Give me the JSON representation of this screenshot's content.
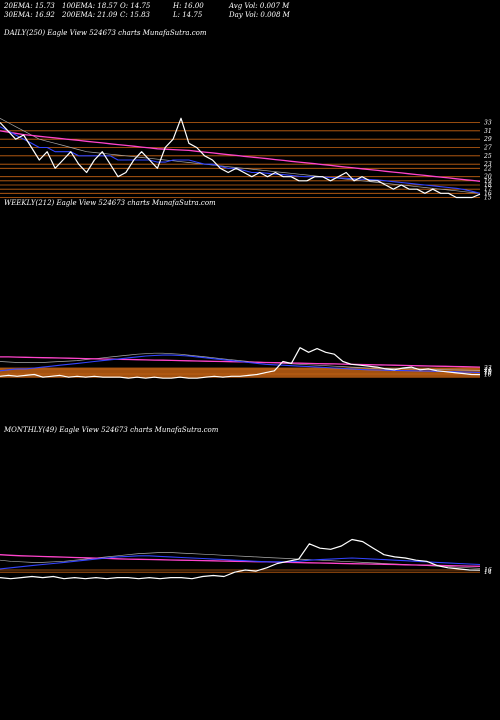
{
  "header": {
    "row1": {
      "ema20": "20EMA: 15.73",
      "ema100": "100EMA: 18.57",
      "open": "O: 14.75",
      "high": "H: 16.00",
      "avgvol": "Avg Vol: 0.007 M"
    },
    "row2": {
      "ema30": "30EMA: 16.92",
      "ema200": "200EMA: 21.09",
      "close": "C: 15.83",
      "low": "L: 14.75",
      "dayvol": "Day Vol: 0.008 M"
    }
  },
  "colors": {
    "price": "#ffffff",
    "ema_fast": "#3344ff",
    "ema_slow": "#ff44cc",
    "ma_gray": "#aaaaaa",
    "level": "#c86414",
    "background": "#000000"
  },
  "chart_data": [
    {
      "type": "line",
      "label": "DAILY(250) Eagle  View  524673 charts MunafaSutra.com",
      "ylim": [
        12,
        36
      ],
      "yticks": [
        "33",
        "31",
        "29",
        "27",
        "25",
        "23",
        "22",
        "20",
        "19",
        "18",
        "17",
        "16",
        "15"
      ],
      "levels": [
        33,
        31,
        29,
        27,
        25,
        23,
        22,
        20,
        19,
        18,
        17,
        16,
        15
      ],
      "series": [
        {
          "role": "price",
          "values": [
            33,
            31,
            29,
            30,
            27,
            24,
            26,
            22,
            24,
            26,
            23,
            21,
            24,
            26,
            23,
            20,
            21,
            24,
            26,
            24,
            22,
            27,
            29,
            34,
            28,
            27,
            25,
            24,
            22,
            21,
            22,
            21,
            20,
            21,
            20,
            21,
            20,
            20,
            19,
            19,
            20,
            20,
            19,
            20,
            21,
            19,
            20,
            19,
            19,
            18,
            17,
            18,
            17,
            17,
            16,
            17,
            16,
            16,
            15,
            15,
            15,
            15.8
          ]
        },
        {
          "role": "ema_fast",
          "values": [
            32,
            31,
            30,
            29,
            28,
            27,
            27,
            26,
            26,
            26,
            25,
            25,
            25,
            25,
            25,
            24,
            24,
            24,
            24,
            24,
            23.5,
            23.5,
            24,
            24,
            24,
            23.5,
            23,
            23,
            22.5,
            22,
            22,
            21.5,
            21,
            21,
            20.8,
            20.6,
            20.5,
            20.3,
            20.1,
            20,
            20,
            19.9,
            19.8,
            19.7,
            19.6,
            19.5,
            19.4,
            19.3,
            19.2,
            19,
            18.8,
            18.6,
            18.4,
            18.2,
            18,
            17.8,
            17.6,
            17.4,
            17.2,
            16.9,
            16.5,
            16
          ]
        },
        {
          "role": "ema_slow",
          "values": [
            31,
            30.7,
            30.4,
            30.1,
            29.9,
            29.7,
            29.5,
            29.3,
            29.1,
            28.9,
            28.7,
            28.5,
            28.3,
            28.1,
            27.9,
            27.7,
            27.5,
            27.3,
            27.1,
            26.9,
            26.7,
            26.6,
            26.5,
            26.4,
            26.3,
            26.1,
            25.9,
            25.7,
            25.5,
            25.3,
            25.1,
            24.9,
            24.7,
            24.5,
            24.3,
            24.1,
            23.9,
            23.7,
            23.5,
            23.3,
            23.1,
            22.9,
            22.7,
            22.5,
            22.3,
            22.1,
            21.9,
            21.7,
            21.5,
            21.3,
            21.1,
            20.9,
            20.7,
            20.5,
            20.3,
            20.1,
            19.9,
            19.7,
            19.5,
            19.3,
            19.1,
            18.9
          ]
        },
        {
          "role": "ma_gray",
          "values": [
            34,
            33,
            32,
            31,
            30,
            29,
            28.5,
            28,
            27.5,
            27,
            26.5,
            26,
            25.8,
            25.6,
            25.4,
            25.2,
            25,
            24.8,
            24.6,
            24.4,
            24.2,
            24,
            23.8,
            23.6,
            23.4,
            23.2,
            23,
            22.8,
            22.6,
            22.4,
            22.2,
            22,
            21.8,
            21.6,
            21.4,
            21.2,
            21,
            20.8,
            20.6,
            20.4,
            20.2,
            20,
            19.8,
            19.6,
            19.4,
            19.2,
            19,
            18.8,
            18.6,
            18.4,
            18.2,
            18,
            17.8,
            17.6,
            17.4,
            17.2,
            17,
            16.8,
            16.6,
            16.4,
            16.2,
            16
          ]
        }
      ]
    },
    {
      "type": "line",
      "label": "WEEKLY(212) Eagle  View  524673 charts MunafaSutra.com",
      "ylim": [
        10,
        75
      ],
      "yticks": [
        "23",
        "21",
        "19",
        "18",
        "16"
      ],
      "levels": [
        23,
        22,
        21,
        20,
        19,
        18,
        17,
        16,
        15,
        14,
        13
      ],
      "series": [
        {
          "role": "price",
          "values": [
            14,
            15,
            14,
            15,
            16,
            13,
            14,
            15,
            13,
            14,
            13,
            14,
            13,
            13,
            13,
            12,
            13,
            12,
            13,
            12,
            12,
            13,
            12,
            12,
            13,
            14,
            13,
            14,
            14,
            15,
            16,
            18,
            20,
            30,
            28,
            45,
            40,
            44,
            40,
            38,
            30,
            27,
            26,
            25,
            24,
            22,
            21,
            23,
            24,
            21,
            22,
            20,
            19,
            18,
            17,
            16,
            15.8
          ]
        },
        {
          "role": "ema_fast",
          "values": [
            20,
            21,
            22,
            22,
            23,
            24,
            25,
            26,
            27,
            28,
            29,
            30,
            31,
            32,
            33,
            34,
            35,
            36,
            36.5,
            37,
            37,
            36.5,
            36,
            35,
            34,
            33,
            32,
            31,
            30,
            29,
            28,
            27,
            26.5,
            26,
            25.5,
            25,
            24.5,
            24,
            23.5,
            23,
            22.5,
            22,
            21.5,
            21,
            20.8,
            20.6,
            20.4,
            20.2,
            20,
            19.8,
            19.6,
            19.4,
            19.2,
            19,
            18.7,
            18.4,
            18
          ]
        },
        {
          "role": "ema_slow",
          "values": [
            35,
            35,
            34.8,
            34.6,
            34.4,
            34.2,
            34,
            33.8,
            33.6,
            33.4,
            33.2,
            33,
            32.8,
            32.6,
            32.4,
            32.2,
            32,
            31.8,
            31.6,
            31.4,
            31.2,
            31,
            30.8,
            30.6,
            30.4,
            30.2,
            30,
            29.8,
            29.6,
            29.4,
            29.2,
            29,
            28.8,
            28.6,
            28.4,
            28.2,
            28,
            27.8,
            27.6,
            27.4,
            27.2,
            27,
            26.8,
            26.6,
            26.4,
            26.2,
            26,
            25.8,
            25.6,
            25.4,
            25.2,
            25,
            24.8,
            24.6,
            24.4,
            24.2,
            24
          ]
        },
        {
          "role": "ma_gray",
          "values": [
            30,
            29.5,
            29,
            29,
            29,
            29,
            29.5,
            30,
            30.5,
            31,
            32,
            33,
            34,
            35,
            36,
            37,
            38,
            38.5,
            39,
            39,
            38.5,
            38,
            37,
            36,
            35,
            34,
            33,
            32,
            31,
            30,
            29.5,
            29,
            28.5,
            28,
            27.5,
            27,
            26.5,
            26,
            25.5,
            25,
            24.5,
            24,
            23.5,
            23,
            22.8,
            22.6,
            22.4,
            22.2,
            22,
            21.8,
            21.6,
            21.4,
            21.2,
            21,
            20.8,
            20.6,
            20.4
          ]
        }
      ]
    },
    {
      "type": "line",
      "label": "MONTHLY(49) Eagle  View  524673 charts MunafaSutra.com",
      "ylim": [
        5,
        60
      ],
      "yticks": [
        "16",
        "14"
      ],
      "levels": [
        16,
        14
      ],
      "series": [
        {
          "role": "price",
          "values": [
            9,
            8,
            9,
            10,
            9,
            10,
            8,
            9,
            8,
            9,
            8,
            9,
            9,
            8,
            9,
            8,
            9,
            9,
            8,
            10,
            11,
            10,
            14,
            16,
            15,
            18,
            22,
            24,
            26,
            40,
            36,
            35,
            38,
            44,
            42,
            36,
            30,
            28,
            27,
            25,
            24,
            20,
            18,
            17,
            16,
            15.8
          ]
        },
        {
          "role": "ema_fast",
          "values": [
            17,
            18,
            19,
            20,
            21,
            22,
            23,
            24,
            25,
            26,
            27,
            28,
            28.5,
            29,
            29,
            28.5,
            28,
            27.5,
            27,
            26.5,
            26,
            25.5,
            25,
            24.5,
            24,
            23.5,
            23.5,
            23.5,
            24,
            25,
            25.5,
            26,
            26.5,
            27,
            26.5,
            26,
            25.5,
            25,
            24.5,
            24,
            23.5,
            23,
            22.5,
            22,
            21.5,
            21
          ]
        },
        {
          "role": "ema_slow",
          "values": [
            30,
            29.5,
            29,
            28.7,
            28.4,
            28.1,
            27.8,
            27.5,
            27.2,
            26.9,
            26.6,
            26.3,
            26,
            25.8,
            25.6,
            25.4,
            25.2,
            25,
            24.8,
            24.6,
            24.4,
            24.2,
            24,
            23.8,
            23.6,
            23.4,
            23.2,
            23,
            22.8,
            22.6,
            22.4,
            22.2,
            22,
            21.8,
            21.6,
            21.4,
            21.2,
            21,
            20.8,
            20.6,
            20.4,
            20.2,
            20,
            19.8,
            19.6,
            19.4
          ]
        },
        {
          "role": "ma_gray",
          "values": [
            25,
            24,
            23.5,
            23,
            23,
            23.5,
            24,
            25,
            26,
            27,
            28,
            29,
            30,
            31,
            31.5,
            32,
            32,
            31.5,
            31,
            30.5,
            30,
            29.5,
            29,
            28.5,
            28,
            27.5,
            27,
            26.5,
            26,
            25.5,
            25,
            24.5,
            24,
            23.5,
            23,
            22.5,
            22,
            21.5,
            21,
            20.5,
            20,
            19.5,
            19,
            18.5,
            18,
            17.5
          ]
        }
      ]
    }
  ]
}
